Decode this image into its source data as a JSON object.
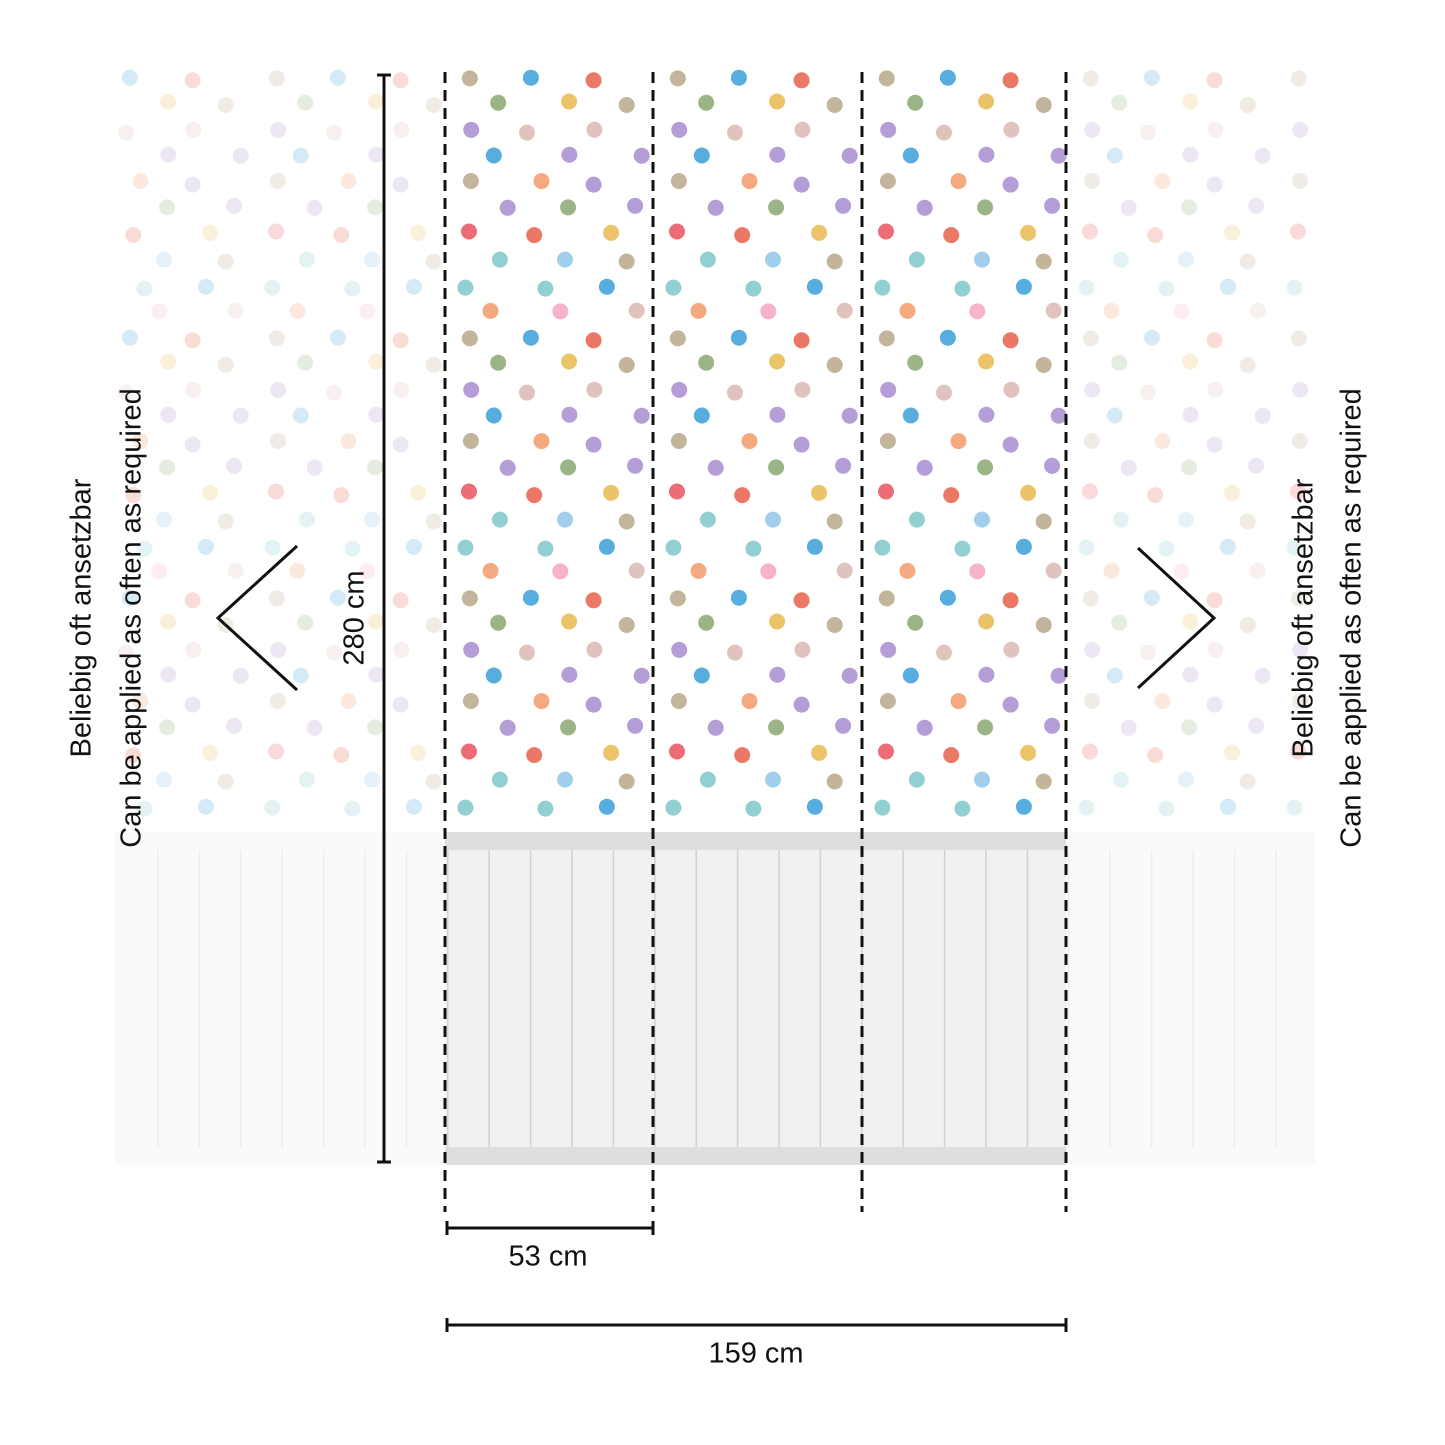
{
  "dimensions": {
    "height": "280 cm",
    "panel_width": "53 cm",
    "total_width": "159 cm"
  },
  "side_notes": {
    "left": [
      "Beliebig oft ansetzbar",
      "Can be applied as often as required"
    ],
    "right": [
      "Beliebig oft ansetzbar",
      "Can be applied as often as required"
    ]
  }
}
